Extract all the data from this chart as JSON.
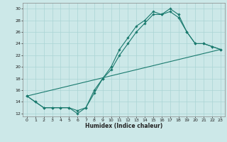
{
  "title": "",
  "xlabel": "Humidex (Indice chaleur)",
  "ylabel": "",
  "bg_color": "#cce8e8",
  "line_color": "#1a7a6e",
  "grid_color": "#aad4d4",
  "xlim": [
    -0.5,
    23.5
  ],
  "ylim": [
    11.5,
    31
  ],
  "xticks": [
    0,
    1,
    2,
    3,
    4,
    5,
    6,
    7,
    8,
    9,
    10,
    11,
    12,
    13,
    14,
    15,
    16,
    17,
    18,
    19,
    20,
    21,
    22,
    23
  ],
  "yticks": [
    12,
    14,
    16,
    18,
    20,
    22,
    24,
    26,
    28,
    30
  ],
  "line1_x": [
    0,
    1,
    2,
    3,
    4,
    5,
    6,
    7,
    8,
    9,
    10,
    11,
    12,
    13,
    14,
    15,
    16,
    17,
    18,
    19,
    20,
    21,
    22,
    23
  ],
  "line1_y": [
    15,
    14,
    13,
    13,
    13,
    13,
    12,
    13,
    16,
    18,
    20,
    23,
    25,
    27,
    28,
    29.5,
    29,
    30,
    29,
    26,
    24,
    24,
    23.5,
    23
  ],
  "line2_x": [
    0,
    1,
    2,
    3,
    4,
    5,
    6,
    7,
    8,
    9,
    10,
    11,
    12,
    13,
    14,
    15,
    16,
    17,
    18,
    19,
    20,
    21,
    22,
    23
  ],
  "line2_y": [
    15,
    14,
    13,
    13,
    13,
    13,
    12.5,
    13,
    15.5,
    18,
    19.5,
    22,
    24,
    26,
    27.5,
    29,
    29,
    29.5,
    28.5,
    26,
    24,
    24,
    23.5,
    23
  ],
  "line3_x": [
    0,
    23
  ],
  "line3_y": [
    15,
    23
  ]
}
